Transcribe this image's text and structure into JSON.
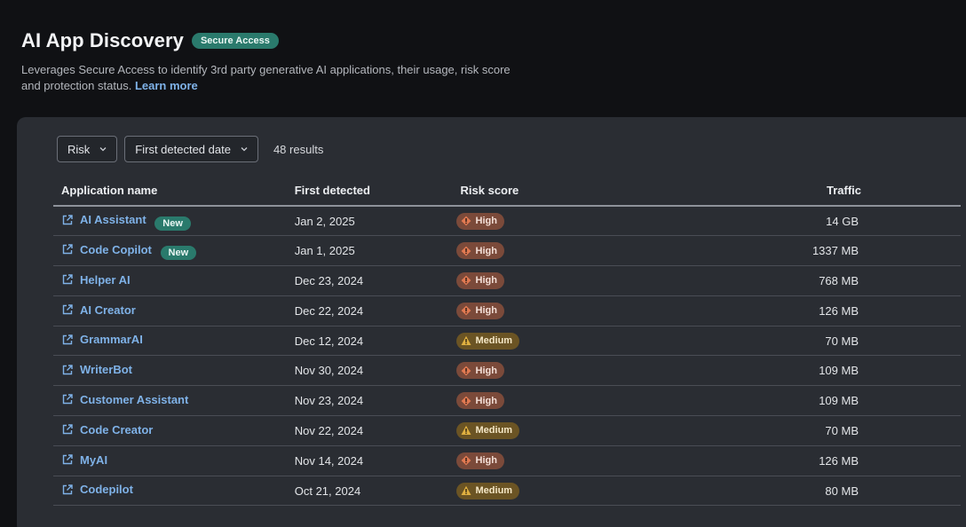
{
  "header": {
    "title": "AI App Discovery",
    "badge": "Secure Access",
    "description": "Leverages Secure Access to identify 3rd party generative AI applications, their usage, risk score and protection status.",
    "learn_more": "Learn more"
  },
  "filters": {
    "risk_label": "Risk",
    "date_label": "First detected date",
    "results": "48 results"
  },
  "table": {
    "columns": [
      "Application name",
      "First detected",
      "Risk score",
      "Traffic"
    ],
    "rows": [
      {
        "name": "AI Assistant",
        "badge": "New",
        "date": "Jan 2, 2025",
        "risk": "High",
        "traffic": "14 GB"
      },
      {
        "name": "Code Copilot",
        "badge": "New",
        "date": "Jan 1, 2025",
        "risk": "High",
        "traffic": "1337 MB"
      },
      {
        "name": "Helper AI",
        "badge": "",
        "date": "Dec 23, 2024",
        "risk": "High",
        "traffic": "768 MB"
      },
      {
        "name": "AI Creator",
        "badge": "",
        "date": "Dec 22, 2024",
        "risk": "High",
        "traffic": "126 MB"
      },
      {
        "name": "GrammarAI",
        "badge": "",
        "date": "Dec 12, 2024",
        "risk": "Medium",
        "traffic": "70 MB"
      },
      {
        "name": "WriterBot",
        "badge": "",
        "date": "Nov 30, 2024",
        "risk": "High",
        "traffic": "109 MB"
      },
      {
        "name": "Customer Assistant",
        "badge": "",
        "date": "Nov 23, 2024",
        "risk": "High",
        "traffic": "109 MB"
      },
      {
        "name": "Code Creator",
        "badge": "",
        "date": "Nov 22, 2024",
        "risk": "Medium",
        "traffic": "70 MB"
      },
      {
        "name": "MyAI",
        "badge": "",
        "date": "Nov 14, 2024",
        "risk": "High",
        "traffic": "126 MB"
      },
      {
        "name": "Codepilot",
        "badge": "",
        "date": "Oct 21, 2024",
        "risk": "Medium",
        "traffic": "80 MB"
      }
    ]
  },
  "colors": {
    "background": "#101114",
    "panel": "#2a2d33",
    "link": "#7fb2e8",
    "badge_teal": "#2a7a6c",
    "risk_high": "#e27a52",
    "risk_medium": "#e0b040"
  }
}
